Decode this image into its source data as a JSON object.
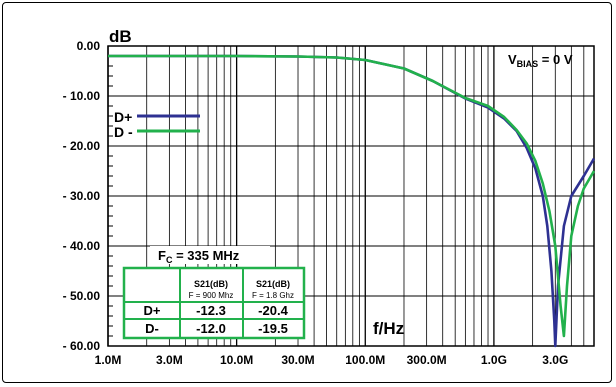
{
  "chart_data": {
    "type": "line",
    "ylabel": "dB",
    "xlabel": "f/Hz",
    "x_scale": "log",
    "xlim": [
      1000000,
      6000000000
    ],
    "ylim": [
      -60,
      0
    ],
    "grid": true,
    "x_ticks": [
      {
        "value": 1000000,
        "label": "1.0M"
      },
      {
        "value": 3000000,
        "label": "3.0M"
      },
      {
        "value": 10000000,
        "label": "10.0M"
      },
      {
        "value": 30000000,
        "label": "30.0M"
      },
      {
        "value": 100000000,
        "label": "100.0M"
      },
      {
        "value": 300000000,
        "label": "300.0M"
      },
      {
        "value": 1000000000,
        "label": "1.0G"
      },
      {
        "value": 3000000000,
        "label": "3.0G"
      }
    ],
    "y_ticks": [
      {
        "value": 0,
        "label": "0.00"
      },
      {
        "value": -10,
        "label": "- 10.00"
      },
      {
        "value": -20,
        "label": "- 20.00"
      },
      {
        "value": -30,
        "label": "- 30.00"
      },
      {
        "value": -40,
        "label": "- 40.00"
      },
      {
        "value": -50,
        "label": "- 50.00"
      },
      {
        "value": -60,
        "label": "- 60.00"
      }
    ],
    "series": [
      {
        "name": "D+",
        "color": "#2e3192",
        "x": [
          1000000,
          10000000,
          30000000,
          60000000,
          100000000,
          200000000,
          335000000,
          600000000,
          900000000,
          1200000000,
          1500000000,
          1800000000,
          2100000000,
          2400000000,
          2600000000,
          2800000000,
          2950000000,
          3000000000,
          3150000000,
          3500000000,
          4000000000,
          5000000000,
          6000000000
        ],
        "y": [
          -2.0,
          -2.0,
          -2.1,
          -2.3,
          -2.8,
          -4.5,
          -7.0,
          -10.5,
          -12.3,
          -14.5,
          -17.0,
          -20.4,
          -24.5,
          -30.0,
          -36.0,
          -45.0,
          -55.0,
          -60.0,
          -48.0,
          -36.0,
          -30.0,
          -26.0,
          -22.5
        ]
      },
      {
        "name": "D -",
        "color": "#22b14c",
        "x": [
          1000000,
          10000000,
          30000000,
          60000000,
          100000000,
          200000000,
          335000000,
          600000000,
          900000000,
          1200000000,
          1500000000,
          1800000000,
          2100000000,
          2400000000,
          2700000000,
          3000000000,
          3300000000,
          3500000000,
          3700000000,
          4000000000,
          4500000000,
          5000000000,
          6000000000
        ],
        "y": [
          -2.0,
          -2.0,
          -2.1,
          -2.3,
          -2.8,
          -4.5,
          -7.0,
          -10.4,
          -12.0,
          -14.2,
          -16.8,
          -19.5,
          -23.0,
          -27.5,
          -33.0,
          -40.0,
          -52.0,
          -58.0,
          -48.0,
          -38.0,
          -32.0,
          -28.5,
          -25.0
        ]
      }
    ]
  },
  "annotations": {
    "vbias_main": "V",
    "vbias_sub": "BIAS",
    "vbias_rest": " = 0 V",
    "fc_main": "F",
    "fc_sub": "C",
    "fc_rest": " = 335 MHz"
  },
  "table": {
    "col1_head": "S21(dB)",
    "col1_sub": "F = 900 Mhz",
    "col2_head": "S21(dB)",
    "col2_sub": "F = 1.8 Ghz",
    "rows": [
      {
        "label": "D+",
        "v1": "-12.3",
        "v2": "-20.4",
        "color": "#2e3192"
      },
      {
        "label": "D-",
        "v1": "-12.0",
        "v2": "-19.5",
        "color": "#22b14c"
      }
    ]
  }
}
